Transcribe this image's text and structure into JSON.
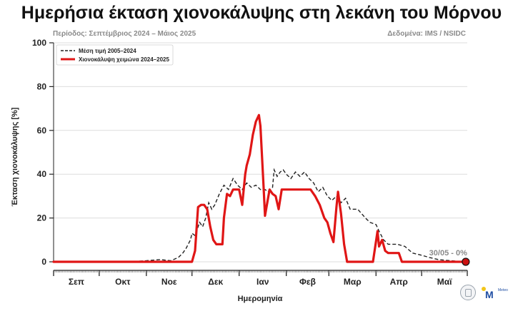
{
  "header": {
    "title": "Ημερήσια έκταση χιονοκάλυψης στη λεκάνη του Μόρνου",
    "subtitle": "Περίοδος: Σεπτέμβριος 2024 – Μάιος 2025",
    "source": "Δεδομένα: IMS / NSIDC"
  },
  "logos": {
    "meteo_text": "Meteo"
  },
  "colors": {
    "current": "#e01616",
    "mean": "#222222",
    "grid": "#dddddd",
    "end_marker": "#cc1111"
  },
  "chart_data": {
    "type": "line",
    "xlabel": "Ημερομηνία",
    "ylabel": "Έκταση χιονοκάλυψης [%]",
    "ylim": [
      0,
      100
    ],
    "yticks": [
      0,
      20,
      40,
      60,
      80,
      100
    ],
    "x_range": [
      "2024-09-01",
      "2025-05-31"
    ],
    "month_labels": [
      "Σεπ",
      "Οκτ",
      "Νοε",
      "Δεκ",
      "Ιαν",
      "Φεβ",
      "Μαρ",
      "Απρ",
      "Μαϊ"
    ],
    "grid": "horizontal",
    "legend_position": "top-left",
    "series": [
      {
        "name": "Μέση τιμή 2005–2024",
        "style": "dashed",
        "points": [
          [
            "2024-09-01",
            0
          ],
          [
            "2024-10-20",
            0
          ],
          [
            "2024-11-01",
            0.5
          ],
          [
            "2024-11-10",
            1
          ],
          [
            "2024-11-17",
            0.5
          ],
          [
            "2024-11-22",
            2
          ],
          [
            "2024-11-25",
            4
          ],
          [
            "2024-11-27",
            6
          ],
          [
            "2024-11-30",
            10
          ],
          [
            "2024-12-01",
            13
          ],
          [
            "2024-12-03",
            12
          ],
          [
            "2024-12-06",
            18
          ],
          [
            "2024-12-08",
            16
          ],
          [
            "2024-12-10",
            20
          ],
          [
            "2024-12-12",
            27
          ],
          [
            "2024-12-14",
            24
          ],
          [
            "2024-12-16",
            26
          ],
          [
            "2024-12-19",
            31
          ],
          [
            "2024-12-22",
            35
          ],
          [
            "2024-12-25",
            33
          ],
          [
            "2024-12-28",
            38
          ],
          [
            "2024-12-31",
            35
          ],
          [
            "2025-01-03",
            33
          ],
          [
            "2025-01-06",
            36
          ],
          [
            "2025-01-09",
            34
          ],
          [
            "2025-01-12",
            35
          ],
          [
            "2025-01-15",
            33
          ],
          [
            "2025-01-18",
            33
          ],
          [
            "2025-01-20",
            32
          ],
          [
            "2025-01-23",
            34
          ],
          [
            "2025-01-24",
            42
          ],
          [
            "2025-01-26",
            39
          ],
          [
            "2025-01-28",
            41
          ],
          [
            "2025-01-30",
            42
          ],
          [
            "2025-02-01",
            40
          ],
          [
            "2025-02-04",
            38
          ],
          [
            "2025-02-07",
            41
          ],
          [
            "2025-02-10",
            39
          ],
          [
            "2025-02-13",
            41
          ],
          [
            "2025-02-16",
            38
          ],
          [
            "2025-02-19",
            36
          ],
          [
            "2025-02-22",
            32
          ],
          [
            "2025-02-25",
            34
          ],
          [
            "2025-02-28",
            30
          ],
          [
            "2025-03-03",
            28
          ],
          [
            "2025-03-06",
            30
          ],
          [
            "2025-03-09",
            27
          ],
          [
            "2025-03-12",
            29
          ],
          [
            "2025-03-15",
            24
          ],
          [
            "2025-03-20",
            24
          ],
          [
            "2025-03-25",
            20
          ],
          [
            "2025-03-28",
            18
          ],
          [
            "2025-04-01",
            17
          ],
          [
            "2025-04-03",
            14
          ],
          [
            "2025-04-06",
            10
          ],
          [
            "2025-04-09",
            8
          ],
          [
            "2025-04-15",
            8
          ],
          [
            "2025-04-20",
            7
          ],
          [
            "2025-04-25",
            4
          ],
          [
            "2025-05-01",
            3
          ],
          [
            "2025-05-06",
            2
          ],
          [
            "2025-05-12",
            1
          ],
          [
            "2025-05-20",
            0.5
          ],
          [
            "2025-05-30",
            0
          ]
        ]
      },
      {
        "name": "Χιονοκάλυψη χειμώνα 2024–2025",
        "style": "solid",
        "points": [
          [
            "2024-09-01",
            0
          ],
          [
            "2024-12-01",
            0
          ],
          [
            "2024-12-03",
            5
          ],
          [
            "2024-12-05",
            25
          ],
          [
            "2024-12-07",
            26
          ],
          [
            "2024-12-09",
            26
          ],
          [
            "2024-12-11",
            24
          ],
          [
            "2024-12-13",
            16
          ],
          [
            "2024-12-15",
            10
          ],
          [
            "2024-12-17",
            8
          ],
          [
            "2024-12-21",
            8
          ],
          [
            "2024-12-22",
            20
          ],
          [
            "2024-12-24",
            31
          ],
          [
            "2024-12-26",
            30
          ],
          [
            "2024-12-28",
            33
          ],
          [
            "2024-12-30",
            33
          ],
          [
            "2025-01-01",
            33
          ],
          [
            "2025-01-03",
            26
          ],
          [
            "2025-01-05",
            40
          ],
          [
            "2025-01-06",
            44
          ],
          [
            "2025-01-08",
            49
          ],
          [
            "2025-01-10",
            58
          ],
          [
            "2025-01-12",
            64
          ],
          [
            "2025-01-14",
            67
          ],
          [
            "2025-01-15",
            62
          ],
          [
            "2025-01-17",
            35
          ],
          [
            "2025-01-18",
            21
          ],
          [
            "2025-01-19",
            25
          ],
          [
            "2025-01-21",
            33
          ],
          [
            "2025-01-23",
            31
          ],
          [
            "2025-01-25",
            30
          ],
          [
            "2025-01-27",
            24
          ],
          [
            "2025-01-29",
            33
          ],
          [
            "2025-02-14",
            33
          ],
          [
            "2025-02-17",
            33
          ],
          [
            "2025-02-20",
            30
          ],
          [
            "2025-02-23",
            26
          ],
          [
            "2025-02-26",
            20
          ],
          [
            "2025-02-28",
            18
          ],
          [
            "2025-03-02",
            13
          ],
          [
            "2025-03-04",
            9
          ],
          [
            "2025-03-06",
            25
          ],
          [
            "2025-03-07",
            32
          ],
          [
            "2025-03-09",
            22
          ],
          [
            "2025-03-11",
            8
          ],
          [
            "2025-03-13",
            0
          ],
          [
            "2025-03-30",
            0
          ],
          [
            "2025-04-02",
            14
          ],
          [
            "2025-04-03",
            7
          ],
          [
            "2025-04-05",
            10
          ],
          [
            "2025-04-07",
            5
          ],
          [
            "2025-04-09",
            4
          ],
          [
            "2025-04-16",
            4
          ],
          [
            "2025-04-18",
            0
          ],
          [
            "2025-05-30",
            0
          ]
        ]
      }
    ],
    "annotations": [
      {
        "text": "30/05 - 0%",
        "x": "2025-05-30",
        "y": 0
      }
    ]
  }
}
